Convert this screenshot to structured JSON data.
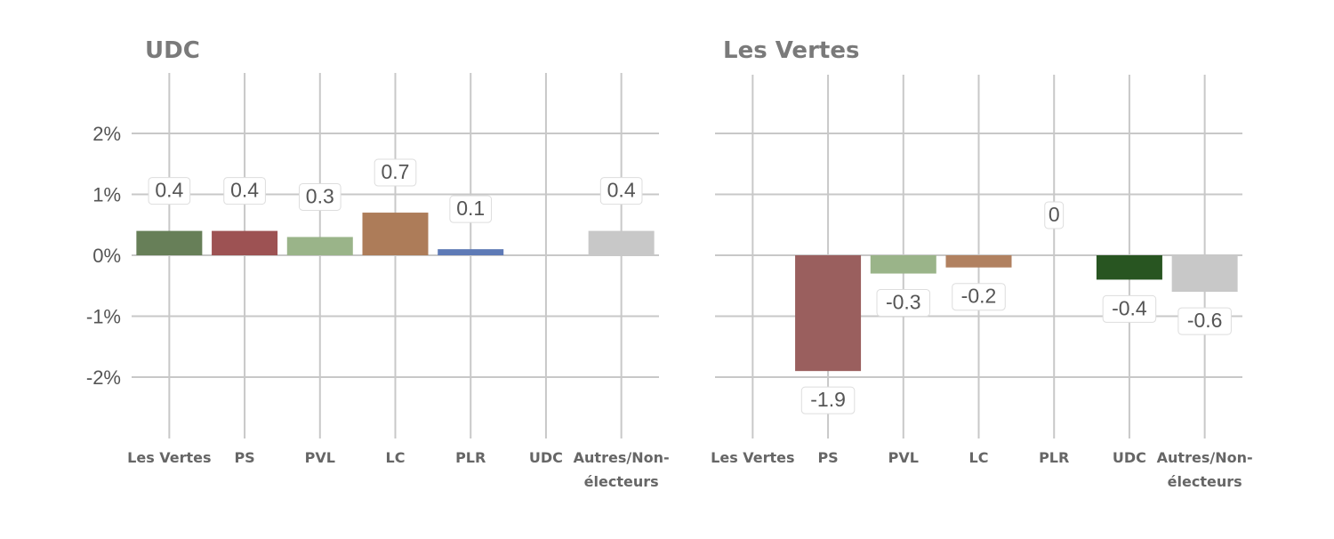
{
  "chart_data": [
    {
      "type": "bar",
      "title": "UDC",
      "categories": [
        "Les Vertes",
        "PS",
        "PVL",
        "LC",
        "PLR",
        "UDC",
        "Autres/Non-électeurs"
      ],
      "values": [
        0.4,
        0.4,
        0.3,
        0.7,
        0.1,
        null,
        0.4
      ],
      "data_labels": [
        "0.4",
        "0.4",
        "0.3",
        "0.7",
        "0.1",
        "",
        "0.4"
      ],
      "colors": [
        "#677f58",
        "#9d5253",
        "#9ab489",
        "#ad7c59",
        "#5e7ab6",
        "#c8c8c8",
        "#c8c8c8"
      ],
      "yticks": [
        "2%",
        "1%",
        "0%",
        "-1%",
        "-2%"
      ],
      "ytick_values": [
        2,
        1,
        0,
        -1,
        -2
      ],
      "ylim": [
        -3,
        3
      ],
      "ylabel": "",
      "xlabel": "",
      "grid": true
    },
    {
      "type": "bar",
      "title": "Les Vertes",
      "categories": [
        "Les Vertes",
        "PS",
        "PVL",
        "LC",
        "PLR",
        "UDC",
        "Autres/Non-électeurs"
      ],
      "values": [
        null,
        -1.9,
        -0.3,
        -0.2,
        0,
        -0.4,
        -0.6
      ],
      "data_labels": [
        "",
        "-1.9",
        "-0.3",
        "-0.2",
        "0",
        "-0.4",
        "-0.6"
      ],
      "colors": [
        "#c8c8c8",
        "#9a5f5e",
        "#9ab489",
        "#b18160",
        "#c8c8c8",
        "#285521",
        "#c8c8c8"
      ],
      "yticks": [],
      "ytick_values": [
        2,
        1,
        0,
        -1,
        -2
      ],
      "ylim": [
        -3,
        3
      ],
      "ylabel": "",
      "xlabel": "",
      "grid": true
    }
  ]
}
